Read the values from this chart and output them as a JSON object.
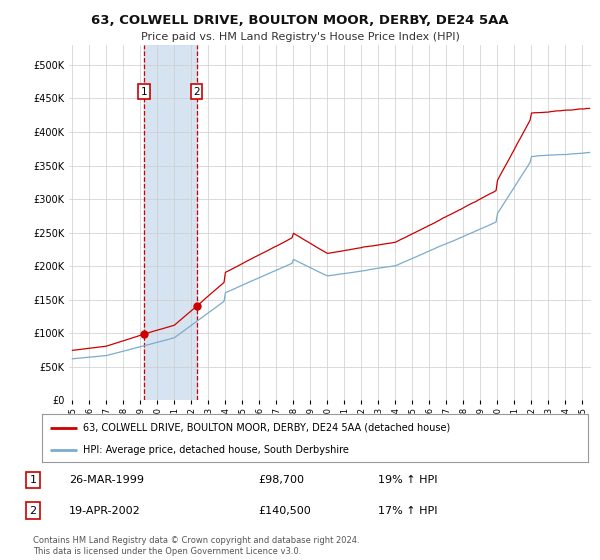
{
  "title": "63, COLWELL DRIVE, BOULTON MOOR, DERBY, DE24 5AA",
  "subtitle": "Price paid vs. HM Land Registry's House Price Index (HPI)",
  "legend_line1": "63, COLWELL DRIVE, BOULTON MOOR, DERBY, DE24 5AA (detached house)",
  "legend_line2": "HPI: Average price, detached house, South Derbyshire",
  "transaction1_date": "26-MAR-1999",
  "transaction1_price": "£98,700",
  "transaction1_hpi": "19% ↑ HPI",
  "transaction2_date": "19-APR-2002",
  "transaction2_price": "£140,500",
  "transaction2_hpi": "17% ↑ HPI",
  "footer": "Contains HM Land Registry data © Crown copyright and database right 2024.\nThis data is licensed under the Open Government Licence v3.0.",
  "property_color": "#cc0000",
  "hpi_color": "#7aaccc",
  "vline_color": "#cc0000",
  "vshade_color": "#cfe0f0",
  "background_color": "#ffffff",
  "grid_color": "#cccccc",
  "yticks": [
    0,
    50000,
    100000,
    150000,
    200000,
    250000,
    300000,
    350000,
    400000,
    450000,
    500000
  ],
  "xlim_start": 1994.8,
  "xlim_end": 2025.5,
  "ylim": [
    0,
    530000
  ],
  "transaction1_x": 1999.23,
  "transaction1_y": 98700,
  "transaction2_x": 2002.3,
  "transaction2_y": 140500
}
